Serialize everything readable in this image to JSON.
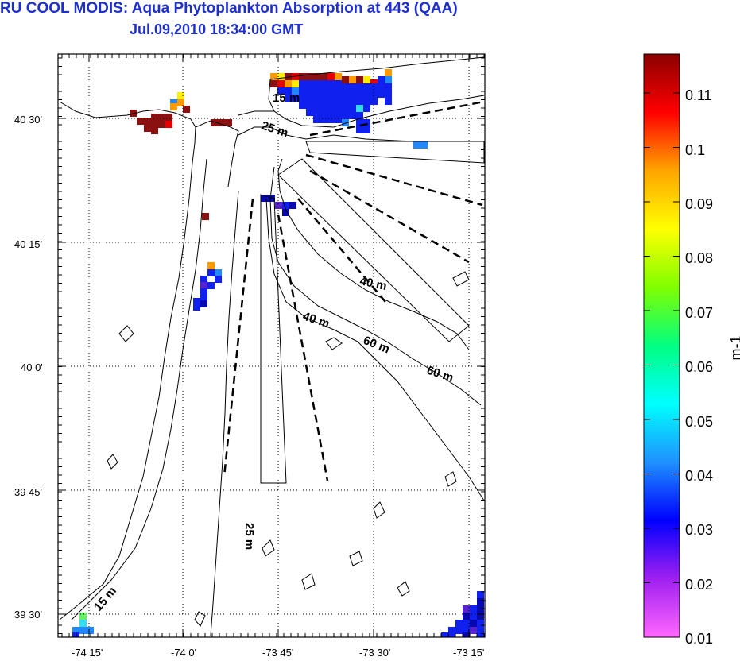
{
  "title": "RU COOL MODIS: Aqua Phytoplankton Absorption at 443 (QAA)",
  "subtitle": "Jul.09,2010 18:34:00 GMT",
  "map": {
    "lat_ticks": [
      "40 30'",
      "40 15'",
      "40 0'",
      "39 45'",
      "39 30'"
    ],
    "lon_ticks": [
      "-74 15'",
      "-74 0'",
      "-73 45'",
      "-73 30'",
      "-73 15'"
    ],
    "contour_labels": [
      "15 m",
      "25 m",
      "40 m",
      "40 m",
      "60 m",
      "60 m",
      "25 m",
      "15 m"
    ]
  },
  "colorbar": {
    "unit": "m-1",
    "labels": [
      "0.11",
      "0.1",
      "0.09",
      "0.08",
      "0.07",
      "0.06",
      "0.05",
      "0.04",
      "0.03",
      "0.02",
      "0.01"
    ],
    "colors": [
      "#ff66ff",
      "#a020f0",
      "#0000ff",
      "#1e90ff",
      "#00ffff",
      "#00ff80",
      "#80ff00",
      "#ffff00",
      "#ffa500",
      "#ff0000",
      "#8b0000"
    ]
  },
  "pixels": {
    "colors": {
      "dkred": "#8b1010",
      "red": "#e60000",
      "orange": "#ff9900",
      "yellow": "#ffee00",
      "green": "#66ee66",
      "cyan": "#33ddee",
      "lblue": "#2288ff",
      "blue": "#1020ee",
      "navy": "#0808b0",
      "purple": "#5522cc"
    }
  }
}
